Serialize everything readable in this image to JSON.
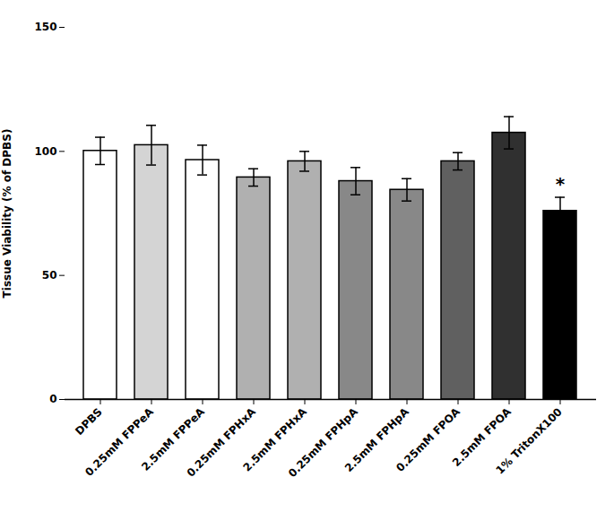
{
  "chart_data": {
    "type": "bar",
    "categories": [
      "DPBS",
      "0.25mM FPPeA",
      "2.5mM FPPeA",
      "0.25mM FPHxA",
      "2.5mM FPHxA",
      "0.25mM FPHpA",
      "2.5mM FPHpA",
      "0.25mM FPOA",
      "2.5mM FPOA",
      "1% TritonX100"
    ],
    "values": [
      100.2,
      102.5,
      96.5,
      89.5,
      96.0,
      88.0,
      84.5,
      96.0,
      107.5,
      76.0
    ],
    "errors": [
      5.5,
      8.0,
      6.0,
      3.5,
      4.0,
      5.5,
      4.5,
      3.5,
      6.5,
      5.5
    ],
    "colors": [
      "#ffffff",
      "#d4d4d4",
      "#ffffff",
      "#b0b0b0",
      "#b0b0b0",
      "#888888",
      "#888888",
      "#606060",
      "#303030",
      "#000000"
    ],
    "ylabel": "Tissue Viability (% of DPBS)",
    "ylim": [
      0,
      150
    ],
    "yticks": [
      0,
      50,
      100,
      150
    ],
    "grid": false,
    "annotations": [
      {
        "text": "*",
        "category": "1% TritonX100"
      }
    ]
  }
}
